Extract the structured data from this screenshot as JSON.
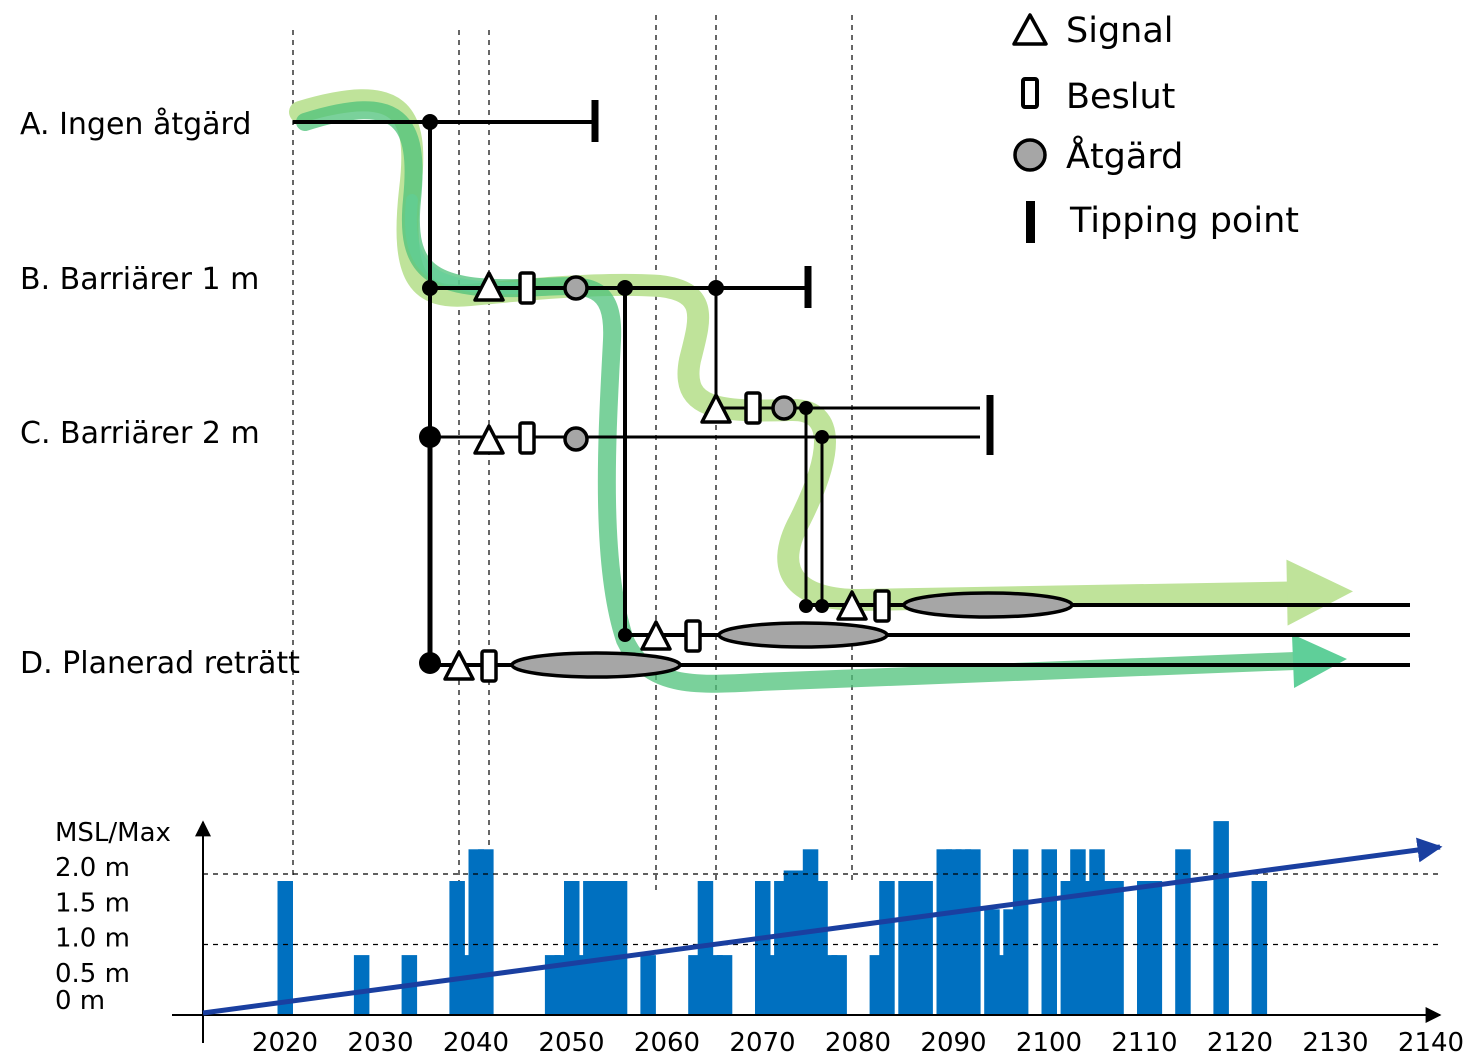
{
  "pathways": {
    "a": "A. Ingen åtgärd",
    "b": "B. Barriärer 1 m",
    "c": "C. Barriärer 2 m",
    "d": "D. Planerad reträtt"
  },
  "legend": {
    "signal": "Signal",
    "beslut": "Beslut",
    "atgard": "Åtgärd",
    "tipping": "Tipping point"
  },
  "colors": {
    "path_dark": "#4ec27a",
    "path_light": "#bfe39a",
    "path_mid": "#5fcf99",
    "bars": "#0070c0",
    "trend": "#1a3fa0",
    "action_fill": "#a6a6a6"
  },
  "chart_data": {
    "type": "bar",
    "ylabel": "MSL/Max",
    "ytick_labels": [
      "2.0 m",
      "1.5 m",
      "1.0 m",
      "0.5 m",
      "0 m"
    ],
    "xtick_labels": [
      "2020",
      "2030",
      "2040",
      "2050",
      "2060",
      "2070",
      "2080",
      "2090",
      "2100",
      "2110",
      "2120",
      "2130",
      "2140"
    ],
    "reference_lines_m": [
      2.0,
      1.0
    ],
    "x": [
      2020,
      2028,
      2033,
      2038,
      2039,
      2040,
      2041,
      2048,
      2049,
      2050,
      2051,
      2052,
      2053,
      2054,
      2055,
      2058,
      2063,
      2064,
      2065,
      2066,
      2070,
      2071,
      2072,
      2073,
      2074,
      2075,
      2076,
      2077,
      2078,
      2082,
      2083,
      2085,
      2086,
      2087,
      2089,
      2090,
      2091,
      2092,
      2094,
      2095,
      2096,
      2097,
      2100,
      2102,
      2103,
      2104,
      2105,
      2106,
      2107,
      2110,
      2111,
      2114,
      2118,
      2122,
      2130,
      2131,
      2132,
      2134
    ],
    "values": [
      1.9,
      0.85,
      0.85,
      1.9,
      0.85,
      2.35,
      2.35,
      0.85,
      0.85,
      1.9,
      0.85,
      1.9,
      1.9,
      1.9,
      1.9,
      0.85,
      0.85,
      1.9,
      0.85,
      0.85,
      1.9,
      0.85,
      1.9,
      2.05,
      2.05,
      2.35,
      1.9,
      0.85,
      0.85,
      0.85,
      1.9,
      1.9,
      1.9,
      1.9,
      2.35,
      2.35,
      2.35,
      2.35,
      1.5,
      0.85,
      1.5,
      2.35,
      2.35,
      1.9,
      2.35,
      1.9,
      2.35,
      1.9,
      1.9,
      1.9,
      1.9,
      2.35,
      2.75,
      1.9,
      0.0,
      0.0,
      0.0,
      0.0
    ],
    "trend": {
      "x": [
        2012,
        2140
      ],
      "y": [
        0.0,
        2.3
      ]
    },
    "xlim": [
      2012,
      2140
    ],
    "ylim": [
      0,
      2.8
    ]
  }
}
